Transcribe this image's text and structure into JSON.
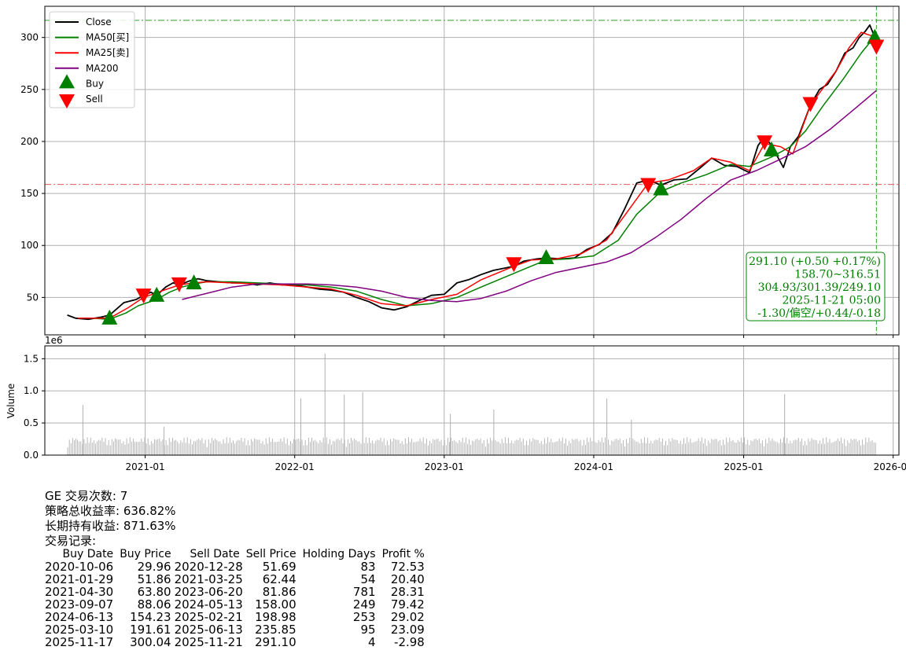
{
  "colors": {
    "close": "#000000",
    "ma50": "#008000",
    "ma25": "#ff0000",
    "ma200": "#800080",
    "buy": "#008000",
    "sell": "#ff0000",
    "volume": "#b0b0b0",
    "grid": "#b0b0b0",
    "hline_green": "#2ca02c",
    "hline_red": "#e8585a",
    "annotation": "#008000"
  },
  "chart_data": [
    {
      "type": "line",
      "x_ticks": [
        "2021-01",
        "2022-01",
        "2023-01",
        "2024-01",
        "2025-01",
        "2026-01"
      ],
      "y_ticks": [
        50,
        100,
        150,
        200,
        250,
        300
      ],
      "xlim": [
        "2020-05-01",
        "2026-01-15"
      ],
      "ylim": [
        14,
        330
      ],
      "grid": true,
      "legend_position": "top-left",
      "legend": [
        {
          "label": "Close",
          "kind": "line",
          "color": "#000000"
        },
        {
          "label": "MA50[买]",
          "kind": "line",
          "color": "#008000"
        },
        {
          "label": "MA25[卖]",
          "kind": "line",
          "color": "#ff0000"
        },
        {
          "label": "MA200",
          "kind": "line",
          "color": "#800080"
        },
        {
          "label": "Buy",
          "kind": "up-triangle",
          "color": "#008000"
        },
        {
          "label": "Sell",
          "kind": "down-triangle",
          "color": "#ff0000"
        }
      ],
      "series": [
        {
          "name": "Close",
          "x": [
            "2020-06-25",
            "2020-07-15",
            "2020-08-15",
            "2020-09-15",
            "2020-10-06",
            "2020-11-10",
            "2020-12-10",
            "2020-12-28",
            "2021-01-15",
            "2021-01-29",
            "2021-02-20",
            "2021-03-10",
            "2021-03-25",
            "2021-04-20",
            "2021-05-10",
            "2021-06-01",
            "2021-07-01",
            "2021-08-01",
            "2021-09-01",
            "2021-10-01",
            "2021-11-01",
            "2021-12-01",
            "2022-01-01",
            "2022-02-01",
            "2022-03-01",
            "2022-04-01",
            "2022-05-01",
            "2022-06-01",
            "2022-07-01",
            "2022-08-01",
            "2022-09-01",
            "2022-10-01",
            "2022-11-01",
            "2022-12-01",
            "2023-01-01",
            "2023-02-01",
            "2023-03-01",
            "2023-04-01",
            "2023-05-01",
            "2023-06-20",
            "2023-07-15",
            "2023-08-15",
            "2023-09-07",
            "2023-10-15",
            "2023-11-15",
            "2023-12-15",
            "2024-01-15",
            "2024-02-15",
            "2024-03-15",
            "2024-04-15",
            "2024-05-13",
            "2024-06-13",
            "2024-07-15",
            "2024-08-15",
            "2024-09-15",
            "2024-10-15",
            "2024-11-15",
            "2024-12-15",
            "2025-01-15",
            "2025-02-05",
            "2025-02-21",
            "2025-03-10",
            "2025-04-08",
            "2025-04-25",
            "2025-05-15",
            "2025-06-13",
            "2025-07-05",
            "2025-07-25",
            "2025-08-15",
            "2025-09-05",
            "2025-09-25",
            "2025-10-10",
            "2025-10-25",
            "2025-11-05",
            "2025-11-17",
            "2025-11-21"
          ],
          "values": [
            33,
            30,
            29,
            31,
            33,
            45,
            48,
            52,
            55,
            52,
            60,
            64,
            62,
            66,
            68,
            66,
            65,
            64,
            64,
            62,
            64,
            62,
            62,
            60,
            58,
            57,
            55,
            50,
            46,
            40,
            38,
            41,
            47,
            52,
            53,
            64,
            67,
            72,
            76,
            80,
            85,
            87,
            88,
            87,
            88,
            96,
            101,
            112,
            134,
            160,
            163,
            158,
            163,
            164,
            174,
            184,
            177,
            176,
            170,
            196,
            205,
            196,
            175,
            195,
            205,
            235,
            250,
            255,
            268,
            285,
            290,
            300,
            306,
            312,
            300,
            291
          ]
        },
        {
          "name": "MA50[买]",
          "x": [
            "2020-08-20",
            "2020-10-06",
            "2020-11-15",
            "2020-12-15",
            "2021-01-29",
            "2021-03-01",
            "2021-04-01",
            "2021-05-01",
            "2021-06-01",
            "2021-08-01",
            "2021-10-01",
            "2021-12-01",
            "2022-02-01",
            "2022-04-01",
            "2022-06-01",
            "2022-08-01",
            "2022-10-01",
            "2022-12-01",
            "2023-02-01",
            "2023-04-01",
            "2023-06-01",
            "2023-08-01",
            "2023-09-07",
            "2023-11-01",
            "2024-01-01",
            "2024-03-01",
            "2024-04-15",
            "2024-06-13",
            "2024-08-01",
            "2024-10-01",
            "2024-12-01",
            "2025-01-15",
            "2025-03-10",
            "2025-04-25",
            "2025-06-01",
            "2025-07-15",
            "2025-09-01",
            "2025-10-15",
            "2025-11-21"
          ],
          "values": [
            30,
            29,
            35,
            42,
            48,
            55,
            60,
            63,
            65,
            65,
            64,
            63,
            62,
            60,
            56,
            48,
            42,
            44,
            50,
            60,
            70,
            80,
            86,
            87,
            90,
            105,
            130,
            152,
            160,
            168,
            178,
            176,
            185,
            195,
            210,
            235,
            260,
            285,
            303
          ]
        },
        {
          "name": "MA25[卖]",
          "x": [
            "2020-07-20",
            "2020-10-06",
            "2020-11-20",
            "2020-12-28",
            "2021-02-01",
            "2021-03-25",
            "2021-04-30",
            "2021-06-01",
            "2021-08-01",
            "2021-10-01",
            "2021-12-01",
            "2022-02-01",
            "2022-04-01",
            "2022-06-01",
            "2022-08-01",
            "2022-10-01",
            "2022-12-01",
            "2023-02-01",
            "2023-04-01",
            "2023-06-20",
            "2023-08-01",
            "2023-10-01",
            "2023-12-01",
            "2024-02-01",
            "2024-03-15",
            "2024-05-13",
            "2024-07-01",
            "2024-09-01",
            "2024-10-15",
            "2024-12-01",
            "2025-01-15",
            "2025-02-21",
            "2025-04-01",
            "2025-05-01",
            "2025-06-13",
            "2025-07-15",
            "2025-08-15",
            "2025-09-15",
            "2025-10-15",
            "2025-11-21"
          ],
          "values": [
            30,
            30,
            40,
            50,
            55,
            62,
            64,
            65,
            64,
            63,
            62,
            60,
            58,
            52,
            44,
            42,
            48,
            53,
            67,
            80,
            86,
            87,
            92,
            105,
            128,
            160,
            163,
            172,
            184,
            180,
            172,
            198,
            195,
            188,
            235,
            252,
            268,
            290,
            305,
            300
          ]
        },
        {
          "name": "MA200",
          "x": [
            "2021-04-01",
            "2021-06-01",
            "2021-08-01",
            "2021-10-01",
            "2021-12-01",
            "2022-02-01",
            "2022-04-01",
            "2022-06-01",
            "2022-08-01",
            "2022-10-01",
            "2022-12-01",
            "2023-02-01",
            "2023-04-01",
            "2023-06-01",
            "2023-08-01",
            "2023-10-01",
            "2023-12-01",
            "2024-02-01",
            "2024-04-01",
            "2024-06-01",
            "2024-08-01",
            "2024-10-01",
            "2024-12-01",
            "2025-02-01",
            "2025-04-01",
            "2025-06-01",
            "2025-08-01",
            "2025-10-01",
            "2025-11-21"
          ],
          "values": [
            48,
            54,
            60,
            63,
            63,
            63,
            62,
            60,
            56,
            50,
            47,
            46,
            49,
            56,
            66,
            74,
            79,
            84,
            93,
            108,
            125,
            145,
            163,
            172,
            183,
            195,
            212,
            232,
            249
          ]
        }
      ],
      "buy_signals": [
        {
          "date": "2020-10-06",
          "price": 29.96
        },
        {
          "date": "2021-01-29",
          "price": 51.86
        },
        {
          "date": "2021-04-30",
          "price": 63.8
        },
        {
          "date": "2023-09-07",
          "price": 88.06
        },
        {
          "date": "2024-06-13",
          "price": 154.23
        },
        {
          "date": "2025-03-10",
          "price": 191.61
        },
        {
          "date": "2025-11-17",
          "price": 300.04
        }
      ],
      "sell_signals": [
        {
          "date": "2020-12-28",
          "price": 51.69
        },
        {
          "date": "2021-03-25",
          "price": 62.44
        },
        {
          "date": "2023-06-20",
          "price": 81.86
        },
        {
          "date": "2024-05-13",
          "price": 158.0
        },
        {
          "date": "2025-02-21",
          "price": 198.98
        },
        {
          "date": "2025-06-13",
          "price": 235.85
        },
        {
          "date": "2025-11-21",
          "price": 291.1
        }
      ],
      "hlines": [
        {
          "value": 316.51,
          "color": "#2ca02c"
        },
        {
          "value": 158.7,
          "color": "#e8585a"
        }
      ],
      "vline": {
        "date": "2025-11-21",
        "color": "#2ca02c"
      },
      "annotation": [
        "291.10 (+0.50 +0.17%)",
        "158.70~316.51",
        "304.93/301.39/249.10",
        "2025-11-21 05:00",
        "-1.30/偏空/+0.44/-0.18"
      ]
    },
    {
      "type": "bar",
      "ylabel": "Volume",
      "offset_text": "1e6",
      "y_ticks": [
        "0.0",
        "0.5",
        "1.0",
        "1.5"
      ],
      "ylim": [
        0,
        1.7
      ],
      "x_ticks": [
        "2021-01",
        "2022-01",
        "2023-01",
        "2024-01",
        "2025-01",
        "2026-01"
      ],
      "grid": true,
      "volume_peaks": [
        {
          "date": "2020-08-01",
          "value": 0.78
        },
        {
          "date": "2021-02-15",
          "value": 0.44
        },
        {
          "date": "2022-01-15",
          "value": 0.88
        },
        {
          "date": "2022-03-15",
          "value": 1.58
        },
        {
          "date": "2022-05-01",
          "value": 0.94
        },
        {
          "date": "2022-06-15",
          "value": 0.98
        },
        {
          "date": "2023-01-15",
          "value": 0.64
        },
        {
          "date": "2023-05-01",
          "value": 0.71
        },
        {
          "date": "2024-02-01",
          "value": 0.88
        },
        {
          "date": "2024-04-01",
          "value": 0.55
        },
        {
          "date": "2025-04-10",
          "value": 0.95
        }
      ]
    }
  ],
  "summary": {
    "trade_count": "GE 交易次数: 7",
    "strategy_return": "策略总收益率: 636.82%",
    "hold_return": "长期持有收益: 871.63%",
    "records_title": "交易记录:"
  },
  "trades": {
    "headers": [
      "Buy Date",
      "Buy Price",
      "Sell Date",
      "Sell Price",
      "Holding Days",
      "Profit %"
    ],
    "rows": [
      [
        "2020-10-06",
        "29.96",
        "2020-12-28",
        "51.69",
        "83",
        "72.53"
      ],
      [
        "2021-01-29",
        "51.86",
        "2021-03-25",
        "62.44",
        "54",
        "20.40"
      ],
      [
        "2021-04-30",
        "63.80",
        "2023-06-20",
        "81.86",
        "781",
        "28.31"
      ],
      [
        "2023-09-07",
        "88.06",
        "2024-05-13",
        "158.00",
        "249",
        "79.42"
      ],
      [
        "2024-06-13",
        "154.23",
        "2025-02-21",
        "198.98",
        "253",
        "29.02"
      ],
      [
        "2025-03-10",
        "191.61",
        "2025-06-13",
        "235.85",
        "95",
        "23.09"
      ],
      [
        "2025-11-17",
        "300.04",
        "2025-11-21",
        "291.10",
        "4",
        "-2.98"
      ]
    ]
  }
}
